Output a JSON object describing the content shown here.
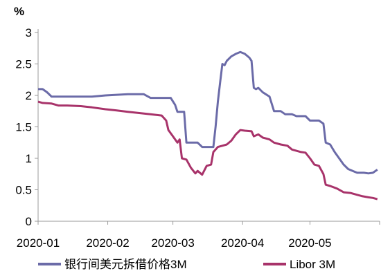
{
  "chart_data": {
    "type": "line",
    "ylabel": "%",
    "xlabel": "",
    "ylim": [
      0,
      3
    ],
    "y_ticks": [
      "0",
      "0.5",
      "1",
      "1.5",
      "2",
      "2.5",
      "3"
    ],
    "x_range": [
      "2020-01-01",
      "2020-05-31"
    ],
    "x_ticks": [
      "2020-01",
      "2020-02",
      "2020-03",
      "2020-04",
      "2020-05"
    ],
    "grid": false,
    "legend_position": "bottom",
    "series": [
      {
        "name": "银行间美元拆借价格3M",
        "color": "#6B6BA8",
        "points": [
          [
            "2020-01-01",
            2.1
          ],
          [
            "2020-01-03",
            2.1
          ],
          [
            "2020-01-05",
            2.05
          ],
          [
            "2020-01-07",
            1.98
          ],
          [
            "2020-01-15",
            1.98
          ],
          [
            "2020-01-20",
            1.98
          ],
          [
            "2020-01-25",
            1.98
          ],
          [
            "2020-01-31",
            2.0
          ],
          [
            "2020-02-05",
            2.01
          ],
          [
            "2020-02-10",
            2.02
          ],
          [
            "2020-02-17",
            2.02
          ],
          [
            "2020-02-20",
            1.96
          ],
          [
            "2020-02-25",
            1.96
          ],
          [
            "2020-02-29",
            1.96
          ],
          [
            "2020-03-02",
            1.85
          ],
          [
            "2020-03-03",
            1.74
          ],
          [
            "2020-03-06",
            1.74
          ],
          [
            "2020-03-07",
            1.25
          ],
          [
            "2020-03-12",
            1.25
          ],
          [
            "2020-03-14",
            1.18
          ],
          [
            "2020-03-19",
            1.18
          ],
          [
            "2020-03-20",
            1.5
          ],
          [
            "2020-03-21",
            1.9
          ],
          [
            "2020-03-22",
            2.2
          ],
          [
            "2020-03-23",
            2.5
          ],
          [
            "2020-03-24",
            2.48
          ],
          [
            "2020-03-25",
            2.55
          ],
          [
            "2020-03-27",
            2.62
          ],
          [
            "2020-03-29",
            2.66
          ],
          [
            "2020-03-31",
            2.69
          ],
          [
            "2020-04-02",
            2.66
          ],
          [
            "2020-04-04",
            2.6
          ],
          [
            "2020-04-05",
            2.55
          ],
          [
            "2020-04-06",
            2.12
          ],
          [
            "2020-04-07",
            2.1
          ],
          [
            "2020-04-08",
            2.12
          ],
          [
            "2020-04-10",
            2.05
          ],
          [
            "2020-04-13",
            1.98
          ],
          [
            "2020-04-15",
            1.75
          ],
          [
            "2020-04-18",
            1.75
          ],
          [
            "2020-04-20",
            1.7
          ],
          [
            "2020-04-23",
            1.7
          ],
          [
            "2020-04-25",
            1.67
          ],
          [
            "2020-04-29",
            1.67
          ],
          [
            "2020-05-01",
            1.6
          ],
          [
            "2020-05-05",
            1.6
          ],
          [
            "2020-05-07",
            1.55
          ],
          [
            "2020-05-08",
            1.25
          ],
          [
            "2020-05-10",
            1.22
          ],
          [
            "2020-05-12",
            1.1
          ],
          [
            "2020-05-14",
            1.0
          ],
          [
            "2020-05-16",
            0.9
          ],
          [
            "2020-05-18",
            0.83
          ],
          [
            "2020-05-20",
            0.8
          ],
          [
            "2020-05-22",
            0.77
          ],
          [
            "2020-05-25",
            0.77
          ],
          [
            "2020-05-27",
            0.76
          ],
          [
            "2020-05-29",
            0.77
          ],
          [
            "2020-05-31",
            0.82
          ]
        ]
      },
      {
        "name": "Libor 3M",
        "color": "#A8336A",
        "points": [
          [
            "2020-01-01",
            1.9
          ],
          [
            "2020-01-03",
            1.88
          ],
          [
            "2020-01-07",
            1.87
          ],
          [
            "2020-01-10",
            1.84
          ],
          [
            "2020-01-14",
            1.84
          ],
          [
            "2020-01-20",
            1.83
          ],
          [
            "2020-01-25",
            1.81
          ],
          [
            "2020-01-31",
            1.78
          ],
          [
            "2020-02-05",
            1.76
          ],
          [
            "2020-02-10",
            1.74
          ],
          [
            "2020-02-15",
            1.72
          ],
          [
            "2020-02-20",
            1.7
          ],
          [
            "2020-02-25",
            1.68
          ],
          [
            "2020-02-27",
            1.6
          ],
          [
            "2020-02-28",
            1.45
          ],
          [
            "2020-03-01",
            1.35
          ],
          [
            "2020-03-03",
            1.25
          ],
          [
            "2020-03-04",
            1.3
          ],
          [
            "2020-03-05",
            1.0
          ],
          [
            "2020-03-07",
            0.98
          ],
          [
            "2020-03-09",
            0.85
          ],
          [
            "2020-03-11",
            0.76
          ],
          [
            "2020-03-12",
            0.8
          ],
          [
            "2020-03-14",
            0.74
          ],
          [
            "2020-03-16",
            0.88
          ],
          [
            "2020-03-18",
            0.9
          ],
          [
            "2020-03-19",
            1.1
          ],
          [
            "2020-03-21",
            1.18
          ],
          [
            "2020-03-23",
            1.2
          ],
          [
            "2020-03-25",
            1.22
          ],
          [
            "2020-03-27",
            1.28
          ],
          [
            "2020-03-29",
            1.38
          ],
          [
            "2020-03-31",
            1.45
          ],
          [
            "2020-04-02",
            1.44
          ],
          [
            "2020-04-05",
            1.43
          ],
          [
            "2020-04-06",
            1.35
          ],
          [
            "2020-04-08",
            1.38
          ],
          [
            "2020-04-10",
            1.33
          ],
          [
            "2020-04-13",
            1.3
          ],
          [
            "2020-04-15",
            1.25
          ],
          [
            "2020-04-18",
            1.22
          ],
          [
            "2020-04-21",
            1.2
          ],
          [
            "2020-04-23",
            1.14
          ],
          [
            "2020-04-27",
            1.1
          ],
          [
            "2020-04-29",
            1.09
          ],
          [
            "2020-05-01",
            1.0
          ],
          [
            "2020-05-03",
            0.9
          ],
          [
            "2020-05-05",
            0.88
          ],
          [
            "2020-05-07",
            0.75
          ],
          [
            "2020-05-08",
            0.58
          ],
          [
            "2020-05-10",
            0.56
          ],
          [
            "2020-05-13",
            0.52
          ],
          [
            "2020-05-16",
            0.46
          ],
          [
            "2020-05-19",
            0.45
          ],
          [
            "2020-05-22",
            0.42
          ],
          [
            "2020-05-24",
            0.4
          ],
          [
            "2020-05-27",
            0.38
          ],
          [
            "2020-05-29",
            0.37
          ],
          [
            "2020-05-31",
            0.35
          ]
        ]
      }
    ]
  }
}
